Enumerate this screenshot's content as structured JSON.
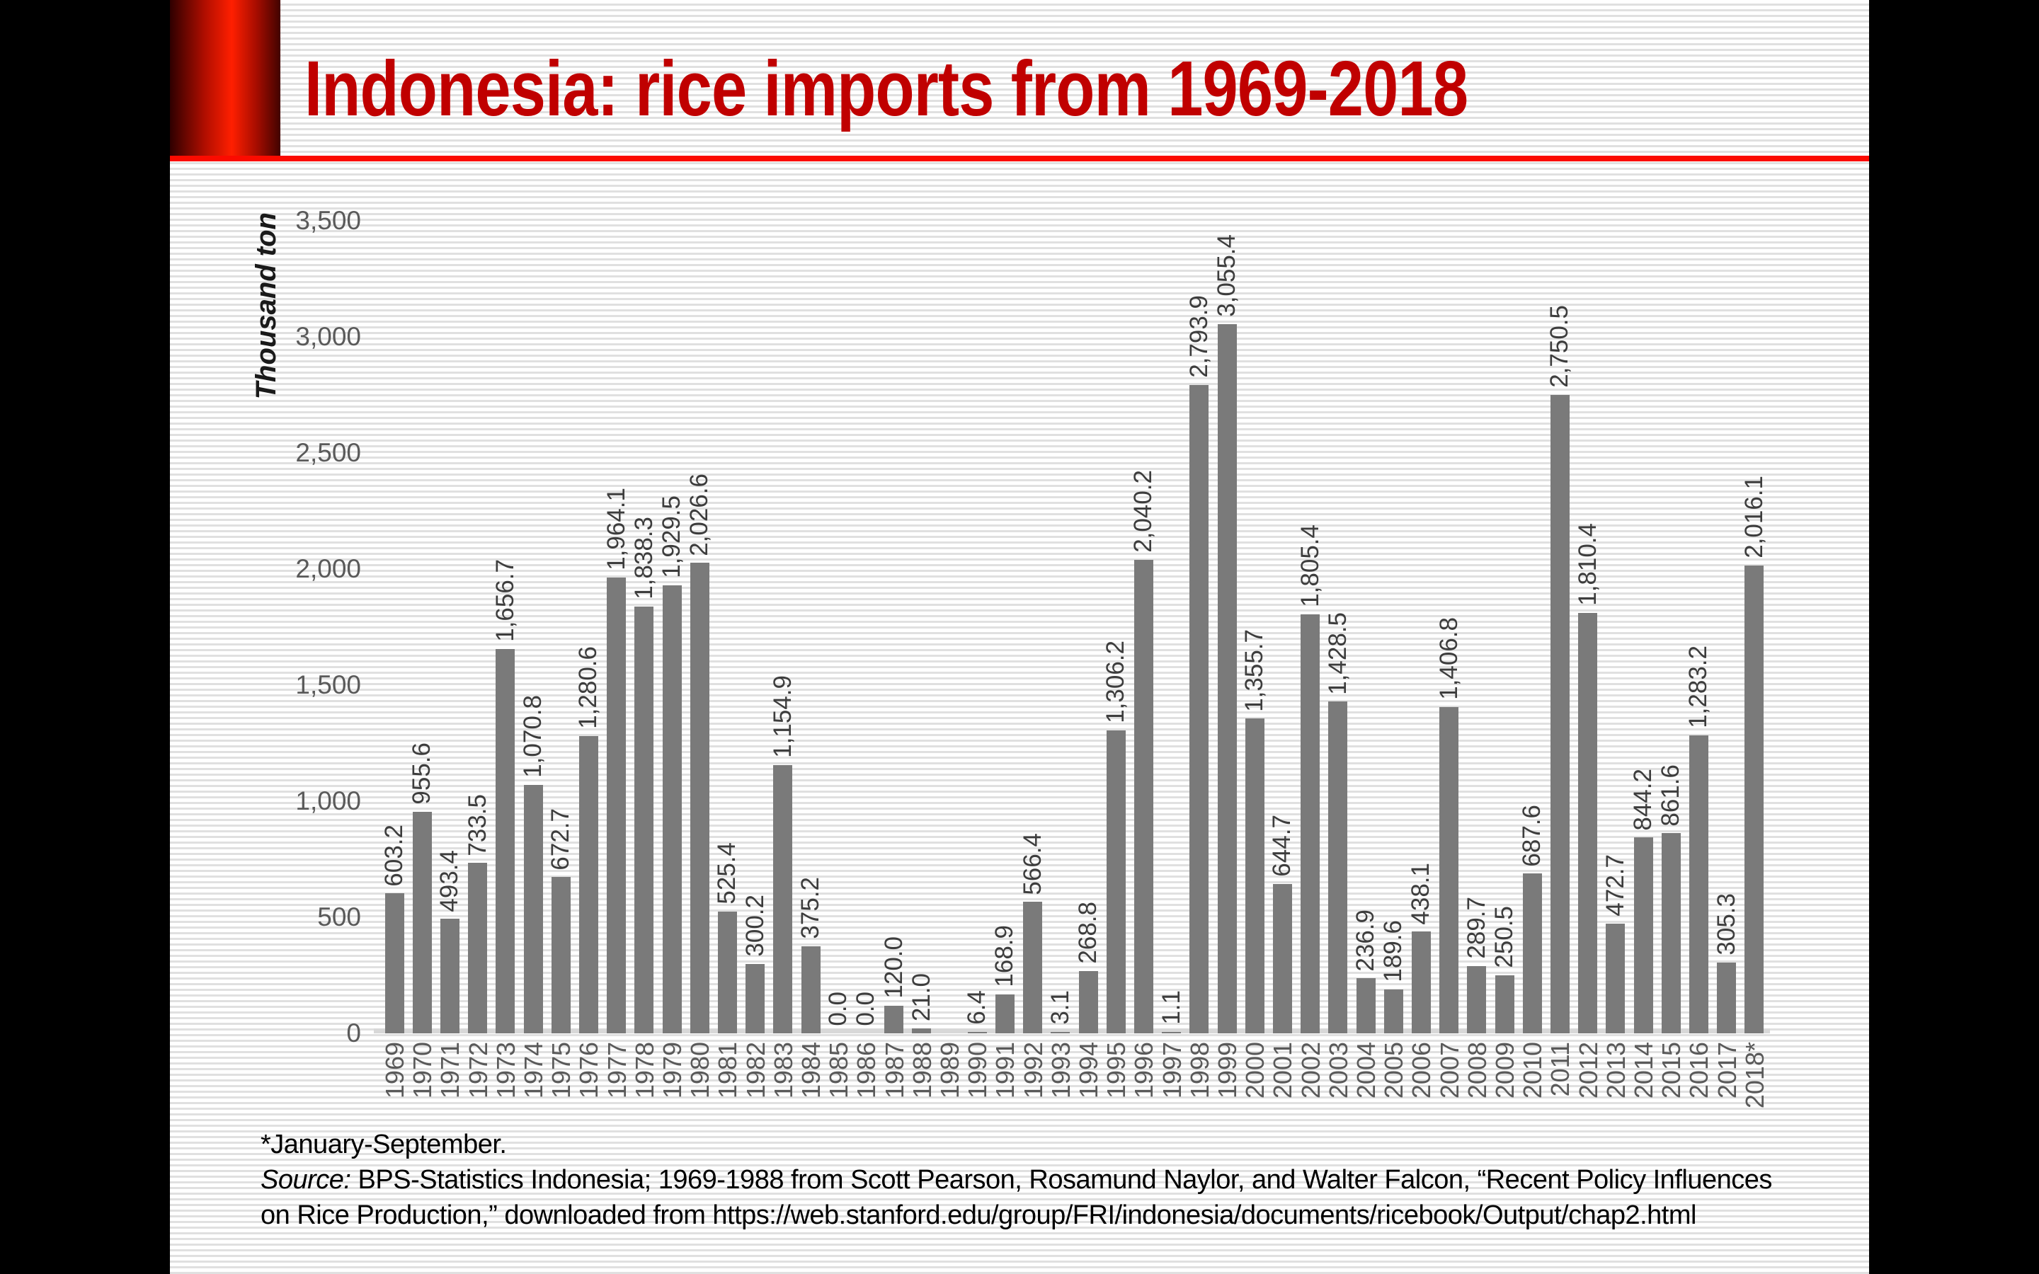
{
  "slide": {
    "title": "Indonesia: rice imports from 1969-2018",
    "footnote_line": "*January-September.",
    "source_label": "Source:",
    "source_line1": " BPS-Statistics Indonesia; 1969-1988 from Scott Pearson, Rosamund Naylor, and Walter Falcon, “Recent Policy Influences",
    "source_line2": "on Rice Production,” downloaded from https://web.stanford.edu/group/FRI/indonesia/documents/ricebook/Output/chap2.html",
    "colors": {
      "title_red": "#c00000",
      "accent_line_red": "#fb0b00",
      "bar_gray": "#7a7a7a",
      "axis_text_gray": "#5a5a5a",
      "value_text_gray": "#3d3d3d"
    }
  },
  "chart_data": {
    "type": "bar",
    "title": "Indonesia: rice imports from 1969-2018",
    "xlabel": "",
    "ylabel": "Thousand ton",
    "ylim": [
      0,
      3500
    ],
    "ytick_step": 500,
    "yticks": [
      "0",
      "500",
      "1,000",
      "1,500",
      "2,000",
      "2,500",
      "3,000",
      "3,500"
    ],
    "grid": false,
    "legend": "none",
    "bar_color": "#7a7a7a",
    "categories": [
      "1969",
      "1970",
      "1971",
      "1972",
      "1973",
      "1974",
      "1975",
      "1976",
      "1977",
      "1978",
      "1979",
      "1980",
      "1981",
      "1982",
      "1983",
      "1984",
      "1985",
      "1986",
      "1987",
      "1988",
      "1989",
      "1990",
      "1991",
      "1992",
      "1993",
      "1994",
      "1995",
      "1996",
      "1997",
      "1998",
      "1999",
      "2000",
      "2001",
      "2002",
      "2003",
      "2004",
      "2005",
      "2006",
      "2007",
      "2008",
      "2009",
      "2010",
      "2011",
      "2012",
      "2013",
      "2014",
      "2015",
      "2016",
      "2017",
      "2018*"
    ],
    "values": [
      603.2,
      955.6,
      493.4,
      733.5,
      1656.7,
      1070.8,
      672.7,
      1280.6,
      1964.1,
      1838.3,
      1929.5,
      2026.6,
      525.4,
      300.2,
      1154.9,
      375.2,
      0.0,
      0.0,
      120.0,
      21.0,
      null,
      6.4,
      168.9,
      566.4,
      3.1,
      268.8,
      1306.2,
      2040.2,
      1.1,
      2793.9,
      3055.4,
      1355.7,
      644.7,
      1805.4,
      1428.5,
      236.9,
      189.6,
      438.1,
      1406.8,
      289.7,
      250.5,
      687.6,
      2750.5,
      1810.4,
      472.7,
      844.2,
      861.6,
      1283.2,
      305.3,
      2016.1
    ],
    "labels": [
      "603.2",
      "955.6",
      "493.4",
      "733.5",
      "1,656.7",
      "1,070.8",
      "672.7",
      "1,280.6",
      "1,964.1",
      "1,838.3",
      "1,929.5",
      "2,026.6",
      "525.4",
      "300.2",
      "1,154.9",
      "375.2",
      "0.0",
      "0.0",
      "120.0",
      "21.0",
      "",
      "6.4",
      "168.9",
      "566.4",
      "3.1",
      "268.8",
      "1,306.2",
      "2,040.2",
      "1.1",
      "2,793.9",
      "3,055.4",
      "1,355.7",
      "644.7",
      "1,805.4",
      "1,428.5",
      "236.9",
      "189.6",
      "438.1",
      "1,406.8",
      "289.7",
      "250.5",
      "687.6",
      "2,750.5",
      "1,810.4",
      "472.7",
      "844.2",
      "861.6",
      "1,283.2",
      "305.3",
      "2,016.1"
    ]
  }
}
